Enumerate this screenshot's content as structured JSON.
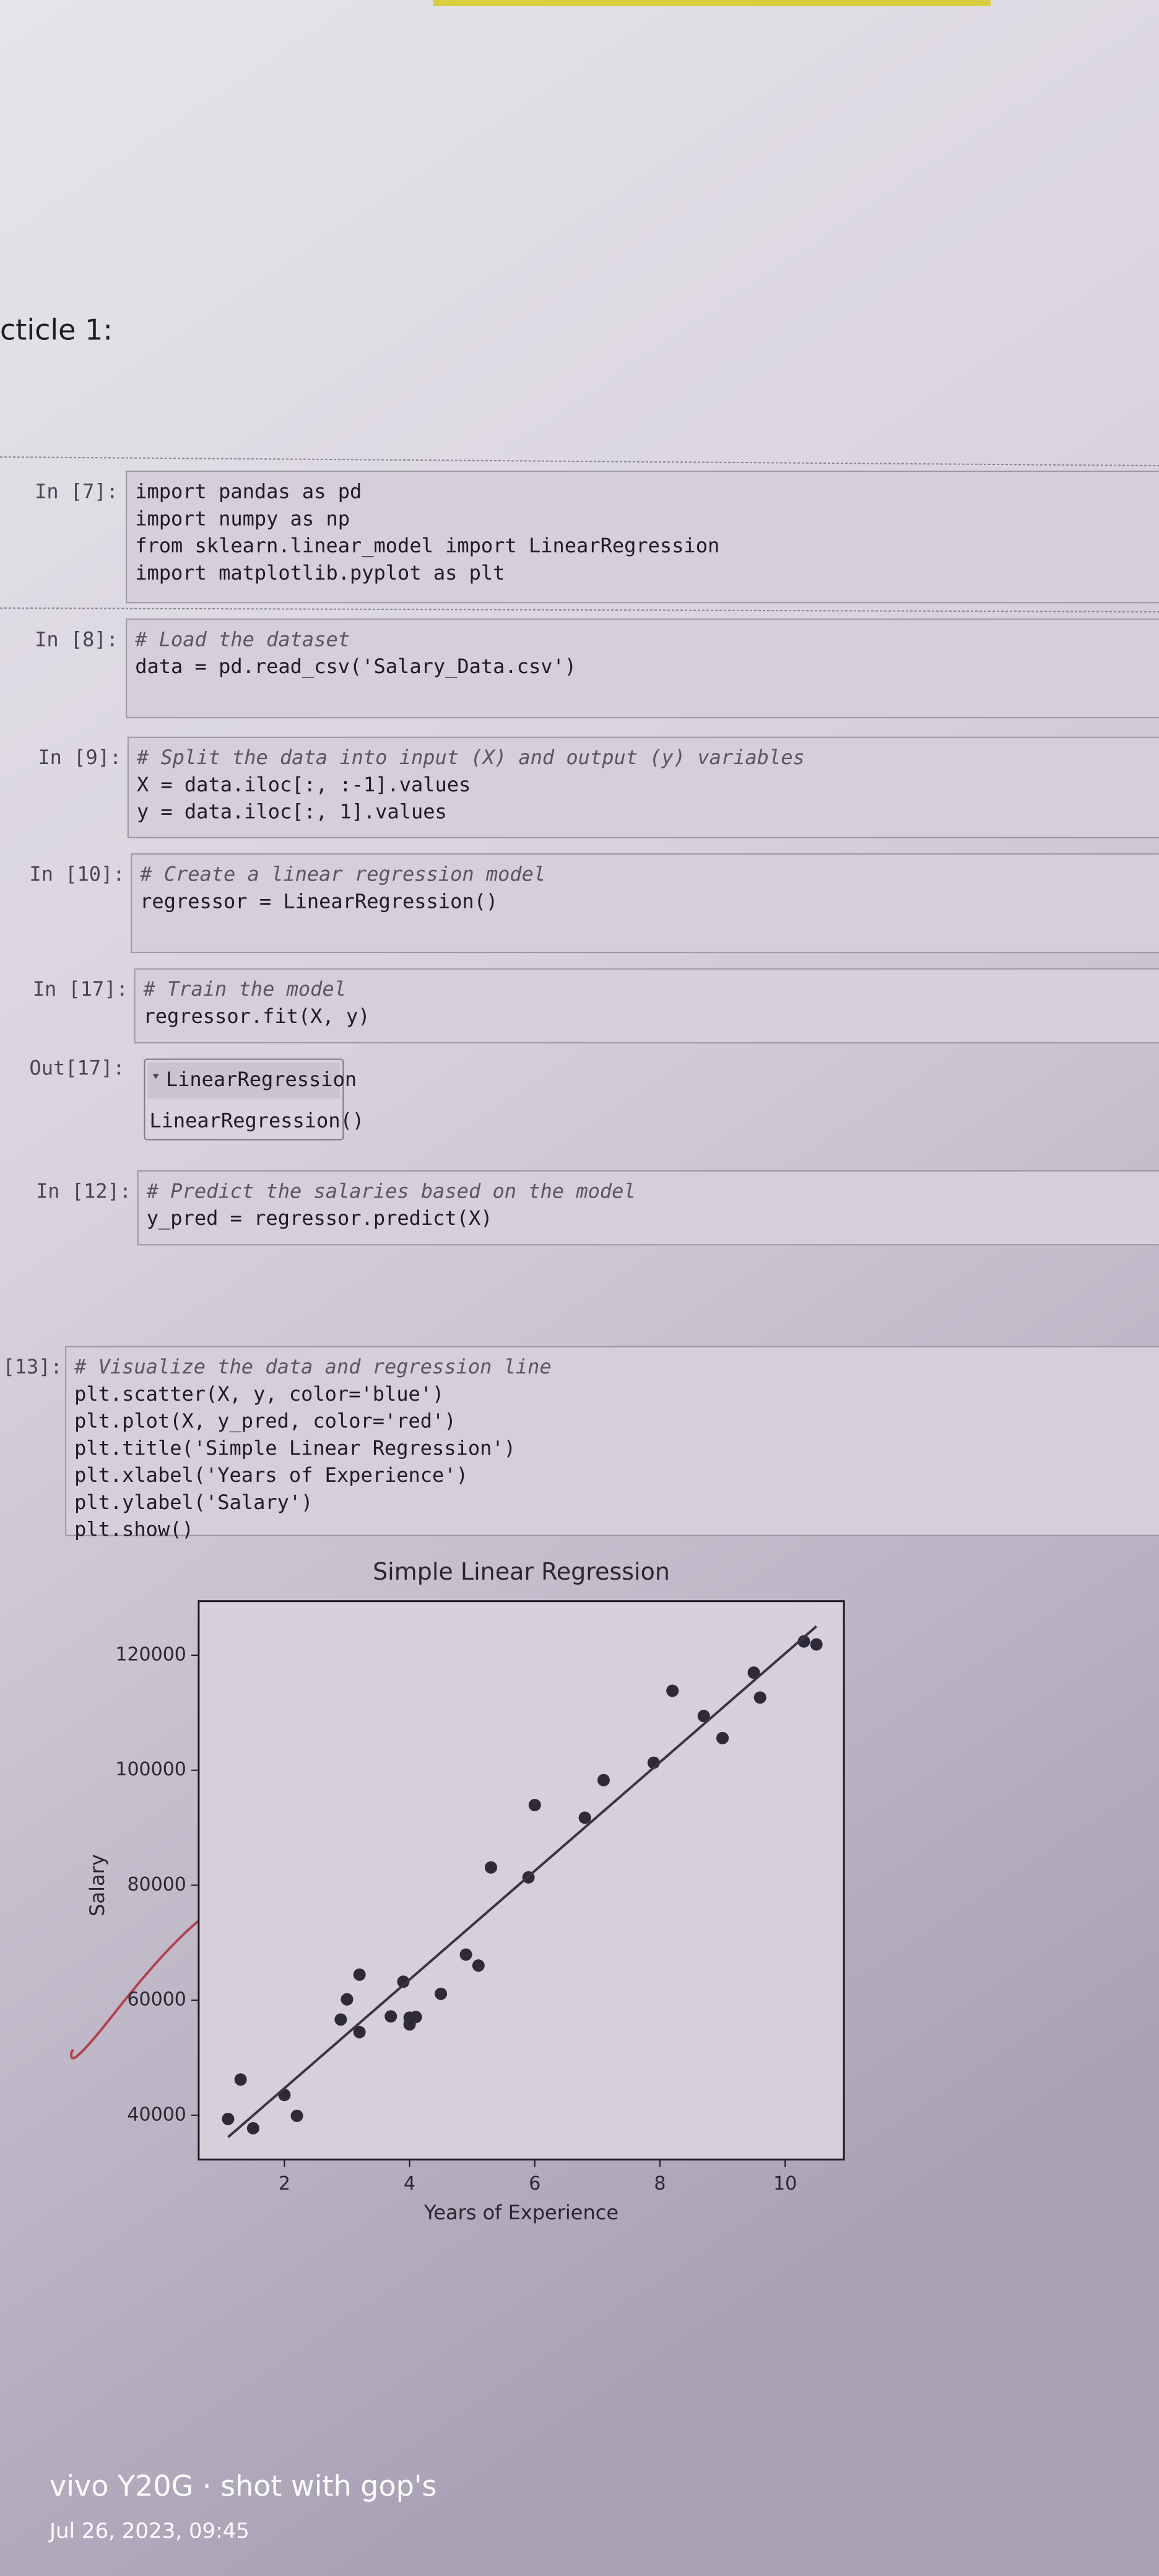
{
  "heading": "cticle 1:",
  "cells": [
    {
      "prompt": "In [7]:",
      "code": [
        "import pandas as pd",
        "import numpy as np",
        "from sklearn.linear_model import LinearRegression",
        "import matplotlib.pyplot as plt"
      ]
    },
    {
      "prompt": "In [8]:",
      "code": [
        "# Load the dataset",
        "data = pd.read_csv('Salary_Data.csv')"
      ]
    },
    {
      "prompt": "In [9]:",
      "code": [
        "# Split the data into input (X) and output (y) variables",
        "X = data.iloc[:, :-1].values",
        "y = data.iloc[:, 1].values"
      ]
    },
    {
      "prompt": "In [10]:",
      "code": [
        "# Create a linear regression model",
        "regressor = LinearRegression()"
      ]
    },
    {
      "prompt": "In [17]:",
      "code": [
        "# Train the model",
        "regressor.fit(X, y)"
      ]
    },
    {
      "prompt": "In [12]:",
      "code": [
        "# Predict the salaries based on the model",
        "y_pred = regressor.predict(X)"
      ]
    },
    {
      "prompt": "[13]:",
      "code": [
        "# Visualize the data and regression line",
        "plt.scatter(X, y, color='blue')",
        "plt.plot(X, y_pred, color='red')",
        "plt.title('Simple Linear Regression')",
        "plt.xlabel('Years of Experience')",
        "plt.ylabel('Salary')",
        "plt.show()"
      ]
    }
  ],
  "output": {
    "prompt": "Out[17]:",
    "widget_title": "LinearRegression",
    "widget_body": "LinearRegression()"
  },
  "chart_data": {
    "type": "scatter",
    "title": "Simple Linear Regression",
    "x_label": "Years of Experience",
    "y_label": "Salary",
    "x": [
      1.1,
      1.3,
      1.5,
      2.0,
      2.2,
      2.9,
      3.0,
      3.2,
      3.2,
      3.7,
      3.9,
      4.0,
      4.0,
      4.1,
      4.5,
      4.9,
      5.1,
      5.3,
      5.9,
      6.0,
      6.8,
      7.1,
      7.9,
      8.2,
      8.7,
      9.0,
      9.5,
      9.6,
      10.3,
      10.5
    ],
    "values": [
      39343,
      46205,
      37731,
      43525,
      39891,
      56642,
      60150,
      54445,
      64445,
      57189,
      63218,
      55794,
      56957,
      57081,
      61111,
      67938,
      66029,
      83088,
      81363,
      93940,
      91738,
      98273,
      101302,
      113812,
      109431,
      105582,
      116969,
      112635,
      122391,
      121872
    ],
    "color": "#2f2a3a",
    "line": {
      "x": [
        1.1,
        10.5
      ],
      "values": [
        36187,
        125017
      ],
      "color": "#3a3545"
    },
    "xlim": [
      0.63,
      10.94
    ],
    "ylim": [
      32300,
      129400
    ],
    "xticks": [
      2,
      4,
      6,
      8,
      10
    ],
    "yticks": [
      40000,
      60000,
      80000,
      100000,
      120000
    ]
  },
  "watermark": {
    "device": "vivo Y20G · shot with gop's",
    "date": "Jul 26, 2023, 09:45"
  }
}
